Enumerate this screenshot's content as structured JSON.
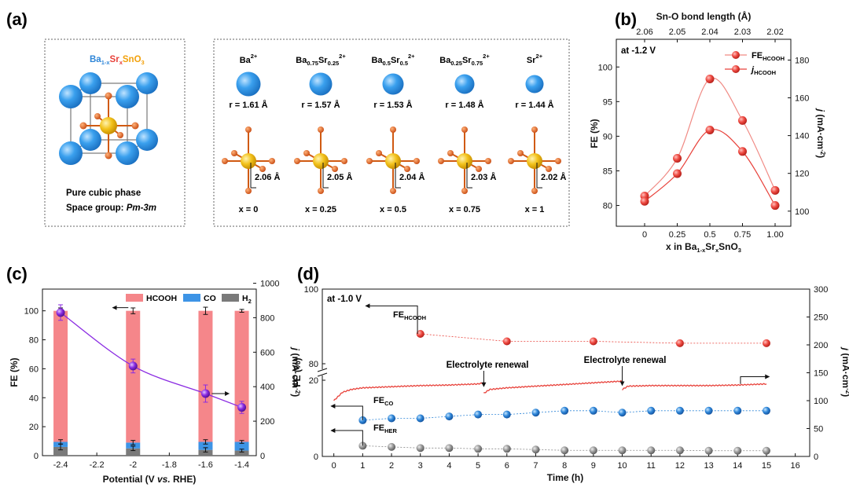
{
  "panel_labels": {
    "a": "(a)",
    "b": "(b)",
    "c": "(c)",
    "d": "(d)"
  },
  "colors": {
    "red": "#e8413a",
    "red_light": "#f08a84",
    "blue": "#2f86d8",
    "blue_fill": "#3d94e6",
    "grey": "#888888",
    "purple": "#8a2be2",
    "hcooh_bar": "#f5868a",
    "co_bar": "#3d94e6",
    "h2_bar": "#7a7a7a",
    "ball_blue": "#3aa0ee",
    "ball_yellow": "#f2c21c",
    "ball_orange": "#e0601a"
  },
  "panel_a": {
    "formula_main": "Ba",
    "formula_sub1": "1-x",
    "formula_sr": "Sr",
    "formula_sub2": "x",
    "formula_sno": "SnO",
    "formula_sub3": "3",
    "phase": "Pure cubic phase",
    "space_group_prefix": "Space group: ",
    "space_group": "Pm-3m",
    "ions": [
      {
        "base": "Ba",
        "sub": "",
        "sup": "2+",
        "radius": "r = 1.61 Å",
        "bond": "2.06 Å",
        "x": "x = 0"
      },
      {
        "base": "Ba",
        "sub": "0.75",
        "mid": "Sr",
        "sub2": "0.25",
        "sup": "2+",
        "radius": "r = 1.57 Å",
        "bond": "2.05 Å",
        "x": "x = 0.25"
      },
      {
        "base": "Ba",
        "sub": "0.5",
        "mid": "Sr",
        "sub2": "0.5",
        "sup": "2+",
        "radius": "r = 1.53 Å",
        "bond": "2.04 Å",
        "x": "x = 0.5"
      },
      {
        "base": "Ba",
        "sub": "0.25",
        "mid": "Sr",
        "sub2": "0.75",
        "sup": "2+",
        "radius": "r = 1.48 Å",
        "bond": "2.03 Å",
        "x": "x = 0.75"
      },
      {
        "base": "Sr",
        "sub": "",
        "sup": "2+",
        "radius": "r = 1.44 Å",
        "bond": "2.02 Å",
        "x": "x = 1"
      }
    ]
  },
  "chart_data": [
    {
      "panel": "b",
      "type": "line",
      "annotation": "at -1.2 V",
      "x": [
        0,
        0.25,
        0.5,
        0.75,
        1.0
      ],
      "xtick_labels": [
        "0",
        "0.25",
        "0.5",
        "0.75",
        "1.00"
      ],
      "xlabel": "x in Ba",
      "xlabel_sub1": "1-x",
      "xlabel_mid": "Sr",
      "xlabel_sub2": "x",
      "xlabel_end": "SnO",
      "xlabel_sub3": "3",
      "top_xlabel": "Sn-O bond length (Å)",
      "top_ticks": [
        "2.06",
        "2.05",
        "2.04",
        "2.03",
        "2.02"
      ],
      "ylabel_left": "FE (%)",
      "ylim_left": [
        77,
        104
      ],
      "yticks_left": [
        80,
        85,
        90,
        95,
        100
      ],
      "ylabel_right_main": "j",
      "ylabel_right_unit": " (mA·cm",
      "ylabel_right_sup": "-2",
      "ylim_right": [
        92,
        191
      ],
      "yticks_right": [
        100,
        120,
        140,
        160,
        180
      ],
      "series": [
        {
          "name": "FE",
          "name_sub": "HCOOH",
          "axis": "left",
          "values": [
            80.6,
            84.6,
            90.9,
            87.8,
            80.0
          ]
        },
        {
          "name": "j",
          "name_sub": "HCOOH",
          "axis": "right",
          "values": [
            108,
            128,
            170,
            148,
            111
          ]
        }
      ]
    },
    {
      "panel": "c",
      "type": "bar",
      "categories": [
        -2.4,
        -2.0,
        -1.6,
        -1.4
      ],
      "xtick_values": [
        -2.4,
        -2.2,
        -2.0,
        -1.8,
        -1.6,
        -1.4
      ],
      "xtick_labels": [
        "-2.4",
        "-2.2",
        "-2",
        "-1.8",
        "-1.6",
        "-1.4"
      ],
      "xlabel_pre": "Potential (V ",
      "xlabel_it": "vs.",
      "xlabel_post": " RHE)",
      "xlim": [
        -2.5,
        -1.32
      ],
      "ylabel_left": "FE (%)",
      "ylim_left": [
        0,
        115
      ],
      "yticks_left": [
        0,
        20,
        40,
        60,
        80,
        100
      ],
      "ylabel_right_main": "j",
      "ylabel_right_unit": " (mA·cm",
      "ylabel_right_sup": "-2",
      "ylim_right": [
        0,
        966
      ],
      "yticks_right": [
        0,
        200,
        400,
        600,
        800,
        1000
      ],
      "legend": [
        {
          "name": "HCOOH",
          "sub": ""
        },
        {
          "name": "CO",
          "sub": ""
        },
        {
          "name": "H",
          "sub": "2"
        }
      ],
      "stacks": [
        {
          "potential": -2.4,
          "h2": 6,
          "co": 3.5,
          "hcooh": 90.5,
          "h2_err": 2,
          "co_err": 1.5,
          "hcooh_err": 2
        },
        {
          "potential": -2.0,
          "h2": 5,
          "co": 4,
          "hcooh": 91,
          "h2_err": 1.5,
          "co_err": 1.5,
          "hcooh_err": 2
        },
        {
          "potential": -1.6,
          "h2": 4,
          "co": 5.5,
          "hcooh": 90.5,
          "h2_err": 1.5,
          "co_err": 1.5,
          "hcooh_err": 2.5
        },
        {
          "potential": -1.4,
          "h2": 3.5,
          "co": 6,
          "hcooh": 90.5,
          "h2_err": 1,
          "co_err": 1,
          "hcooh_err": 1
        }
      ],
      "current_density": {
        "values": [
          830,
          520,
          360,
          280
        ],
        "errors": [
          45,
          40,
          50,
          35
        ]
      }
    },
    {
      "panel": "d",
      "type": "scatter",
      "annotation": "at -1.0 V",
      "xlabel": "Time (h)",
      "xlim": [
        -0.4,
        16.5
      ],
      "xticks": [
        0,
        1,
        2,
        3,
        4,
        5,
        6,
        7,
        8,
        9,
        10,
        11,
        12,
        13,
        14,
        15,
        16
      ],
      "ylabel_left": "FE (%)",
      "yticks_left_upper": [
        80,
        100
      ],
      "yticks_left_lower": [
        0,
        20
      ],
      "ylabel_right_main": "j",
      "ylabel_right_unit": " (mA·cm",
      "ylabel_right_sup": "-2",
      "ylim_right": [
        0,
        300
      ],
      "yticks_right": [
        0,
        50,
        100,
        150,
        200,
        250,
        300
      ],
      "renewal_label": "Electrolyte renewal",
      "renewal_times": [
        5.2,
        10.0
      ],
      "series": [
        {
          "name": "FE",
          "name_sub": "HCOOH",
          "x": [
            3,
            6,
            9,
            12,
            15
          ],
          "values": [
            88,
            86,
            86,
            85.5,
            85.5
          ]
        },
        {
          "name": "FE",
          "name_sub": "CO",
          "x": [
            1,
            2,
            3,
            4,
            5,
            6,
            7,
            8,
            9,
            10,
            11,
            12,
            13,
            14,
            15
          ],
          "values": [
            9.5,
            10,
            10,
            10.5,
            11,
            11,
            11.5,
            12,
            12,
            11.5,
            12,
            12,
            12,
            12,
            12
          ]
        },
        {
          "name": "FE",
          "name_sub": "HER",
          "x": [
            1,
            2,
            3,
            4,
            5,
            6,
            7,
            8,
            9,
            10,
            11,
            12,
            13,
            14,
            15
          ],
          "values": [
            2.8,
            2.5,
            2.2,
            2.2,
            2.0,
            2.0,
            1.8,
            1.6,
            1.6,
            1.6,
            1.6,
            1.6,
            1.5,
            1.5,
            1.5
          ]
        },
        {
          "name": "j",
          "axis": "right",
          "segments": [
            {
              "t": [
                0,
                0.3,
                0.6,
                1,
                2,
                3,
                4,
                5,
                5.2
              ],
              "j": [
                100,
                115,
                120,
                123,
                125,
                127,
                128,
                130,
                132
              ]
            },
            {
              "t": [
                5.2,
                5.4,
                6,
                7,
                8,
                9,
                10
              ],
              "j": [
                113,
                120,
                123,
                126,
                129,
                132,
                135
              ]
            },
            {
              "t": [
                10,
                10.2,
                11,
                12,
                13,
                14,
                15
              ],
              "j": [
                120,
                126,
                127,
                127,
                127,
                128,
                130
              ]
            }
          ]
        }
      ]
    }
  ]
}
